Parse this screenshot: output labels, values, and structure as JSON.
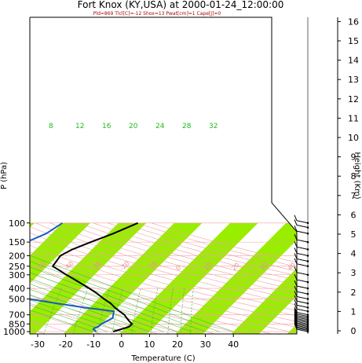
{
  "header": {
    "title": "Fort Knox (KY,USA) at 2000-01-24_12:00:00",
    "subtitle": "Pld=869 Tlcl[C]=-12 Shox=13 Pwat[cm]=1 Cape[J]=0"
  },
  "colors": {
    "isotherm_band": "#99ee00",
    "temperature": "#000000",
    "dewpoint": "#1a5bbf",
    "dry_adiabat": "#f0a0a0",
    "mixing_ratio": "#22bb22",
    "wind_barb": "#000000"
  },
  "chart_data": {
    "type": "line",
    "title": "Fort Knox (KY,USA) at 2000-01-24_12:00:00",
    "subtitle": "Pld=869 Tlcl[C]=-12 Shox=13 Pwat[cm]=1 Cape[J]=0",
    "xlabel": "Temperature (C)",
    "ylabel": "P (hPa)",
    "y2label": "Height (Km)",
    "y_scale": "log",
    "y_inverted": true,
    "xlim": [
      -35,
      48
    ],
    "ylim": [
      1050,
      100
    ],
    "x_ticks": [
      -30,
      -20,
      -10,
      0,
      10,
      20,
      30,
      40
    ],
    "y_ticks": [
      100,
      150,
      200,
      250,
      300,
      400,
      500,
      700,
      850,
      1000
    ],
    "y2_ticks": [
      0,
      1,
      2,
      3,
      4,
      5,
      6,
      7,
      8,
      9,
      10,
      11,
      12,
      13,
      14,
      15,
      16
    ],
    "mixing_ratio_labels": [
      "8",
      "12",
      "16",
      "20",
      "24",
      "28",
      "32"
    ],
    "isotherm_labels": [
      "-60",
      "-50",
      "-40",
      "-30",
      "-20",
      "-10",
      "0",
      "10",
      "20",
      "30",
      "40",
      "50"
    ],
    "series": [
      {
        "name": "",
        "role": "temperature",
        "pressure": [
          1000,
          975,
          950,
          925,
          900,
          850,
          800,
          750,
          700,
          650,
          600,
          550,
          500,
          450,
          400,
          350,
          300,
          250,
          200,
          175,
          150,
          125,
          100
        ],
        "temperature": [
          -3,
          -2,
          -1,
          0,
          1,
          1,
          -1,
          -3,
          -5,
          -8,
          -11,
          -14,
          -18,
          -22,
          -27,
          -33,
          -40,
          -48,
          -49,
          -47,
          -43,
          -38,
          -33
        ]
      },
      {
        "name": "",
        "role": "dewpoint",
        "pressure": [
          1000,
          975,
          950,
          925,
          900,
          850,
          800,
          750,
          700,
          650,
          600,
          550,
          500,
          450,
          400,
          350,
          300,
          250,
          200,
          175,
          150,
          125,
          100
        ],
        "dewpoint": [
          -9,
          -10,
          -11,
          -11,
          -10,
          -10,
          -9,
          -8,
          -9,
          -10,
          -22,
          -33,
          -45,
          -55,
          -60,
          -57,
          -64,
          -68,
          -71,
          -69,
          -66,
          -62,
          -60
        ]
      }
    ],
    "wind_levels_hpa": [
      1000,
      975,
      950,
      925,
      900,
      875,
      850,
      825,
      800,
      775,
      750,
      725,
      700,
      650,
      600,
      550,
      500,
      450,
      400,
      350,
      300,
      250,
      225,
      200,
      175,
      150,
      125,
      110,
      100
    ],
    "grid": true,
    "legend": "none"
  }
}
